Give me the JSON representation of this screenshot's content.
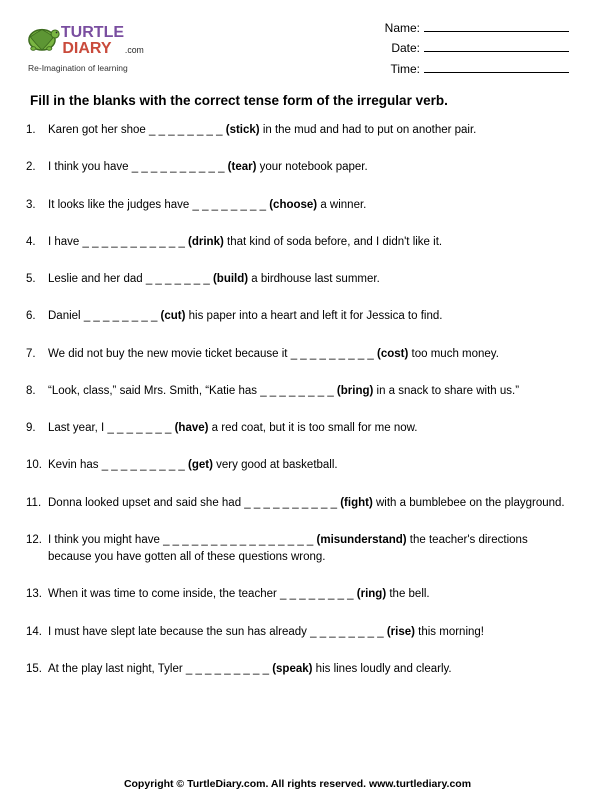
{
  "logo": {
    "text_main": "TURTLE",
    "text_sub": "DIARY",
    "domain": ".com",
    "tagline": "Re-Imagination of learning"
  },
  "fields": {
    "name": "Name:",
    "date": "Date:",
    "time": "Time:"
  },
  "instructions": "Fill in the blanks with the correct tense form of the irregular verb.",
  "questions": [
    {
      "pre": "Karen got her shoe ",
      "blank": "_ _ _ _ _ _ _ _",
      "verb": "(stick)",
      "post": " in the mud and had to put on another pair."
    },
    {
      "pre": "I think you have ",
      "blank": "_ _ _ _ _ _ _ _ _ _",
      "verb": "(tear)",
      "post": " your notebook paper."
    },
    {
      "pre": "It looks like the judges have ",
      "blank": "_ _ _ _ _ _ _ _",
      "verb": "(choose)",
      "post": " a winner."
    },
    {
      "pre": "I have ",
      "blank": "_ _ _ _ _ _ _ _ _ _ _",
      "verb": "(drink)",
      "post": " that kind of soda before, and I didn't like it."
    },
    {
      "pre": "Leslie and her dad ",
      "blank": "_ _ _ _ _ _ _",
      "verb": "(build)",
      "post": " a birdhouse last summer."
    },
    {
      "pre": "Daniel ",
      "blank": "_ _ _ _ _ _ _ _",
      "verb": "(cut)",
      "post": " his paper into a heart and left it for Jessica to find."
    },
    {
      "pre": "We did not buy the new movie ticket because it ",
      "blank": "_ _ _ _ _ _ _ _ _",
      "verb": "(cost)",
      "post": " too much money."
    },
    {
      "pre": "“Look, class,” said Mrs. Smith, “Katie has ",
      "blank": "_ _ _ _ _ _ _ _",
      "verb": "(bring)",
      "post": " in a snack to share with us.”"
    },
    {
      "pre": "Last year, I ",
      "blank": "_ _ _ _ _ _ _",
      "verb": "(have)",
      "post": " a red coat, but it is too small for me now."
    },
    {
      "pre": "Kevin has ",
      "blank": "_ _ _ _ _ _ _ _ _",
      "verb": "(get)",
      "post": " very good at basketball."
    },
    {
      "pre": "Donna looked upset and said she had ",
      "blank": "_ _ _ _ _ _ _ _ _ _",
      "verb": "(fight)",
      "post": " with a bumblebee on the playground."
    },
    {
      "pre": "I think you might have ",
      "blank": "_ _ _ _ _ _ _ _ _ _ _ _ _ _ _ _",
      "verb": "(misunderstand)",
      "post": " the teacher's directions because you have gotten all of these questions wrong."
    },
    {
      "pre": "When it was time to come inside, the teacher ",
      "blank": "_ _ _ _ _ _ _ _",
      "verb": "(ring)",
      "post": " the bell."
    },
    {
      "pre": "I must have slept late because the sun has already ",
      "blank": "_ _ _ _ _ _ _ _",
      "verb": "(rise)",
      "post": " this morning!"
    },
    {
      "pre": "At the play last night, Tyler ",
      "blank": "_ _ _ _ _ _ _ _ _",
      "verb": "(speak)",
      "post": " his lines loudly and clearly."
    }
  ],
  "copyright": "Copyright © TurtleDiary.com. All rights reserved.  www.turtlediary.com",
  "colors": {
    "turtle_green": "#7ab642",
    "turtle_dark": "#3d6b1f",
    "text_purple": "#7a4ea0",
    "text_red": "#c94a3b",
    "text_dark": "#2b2b2b"
  }
}
